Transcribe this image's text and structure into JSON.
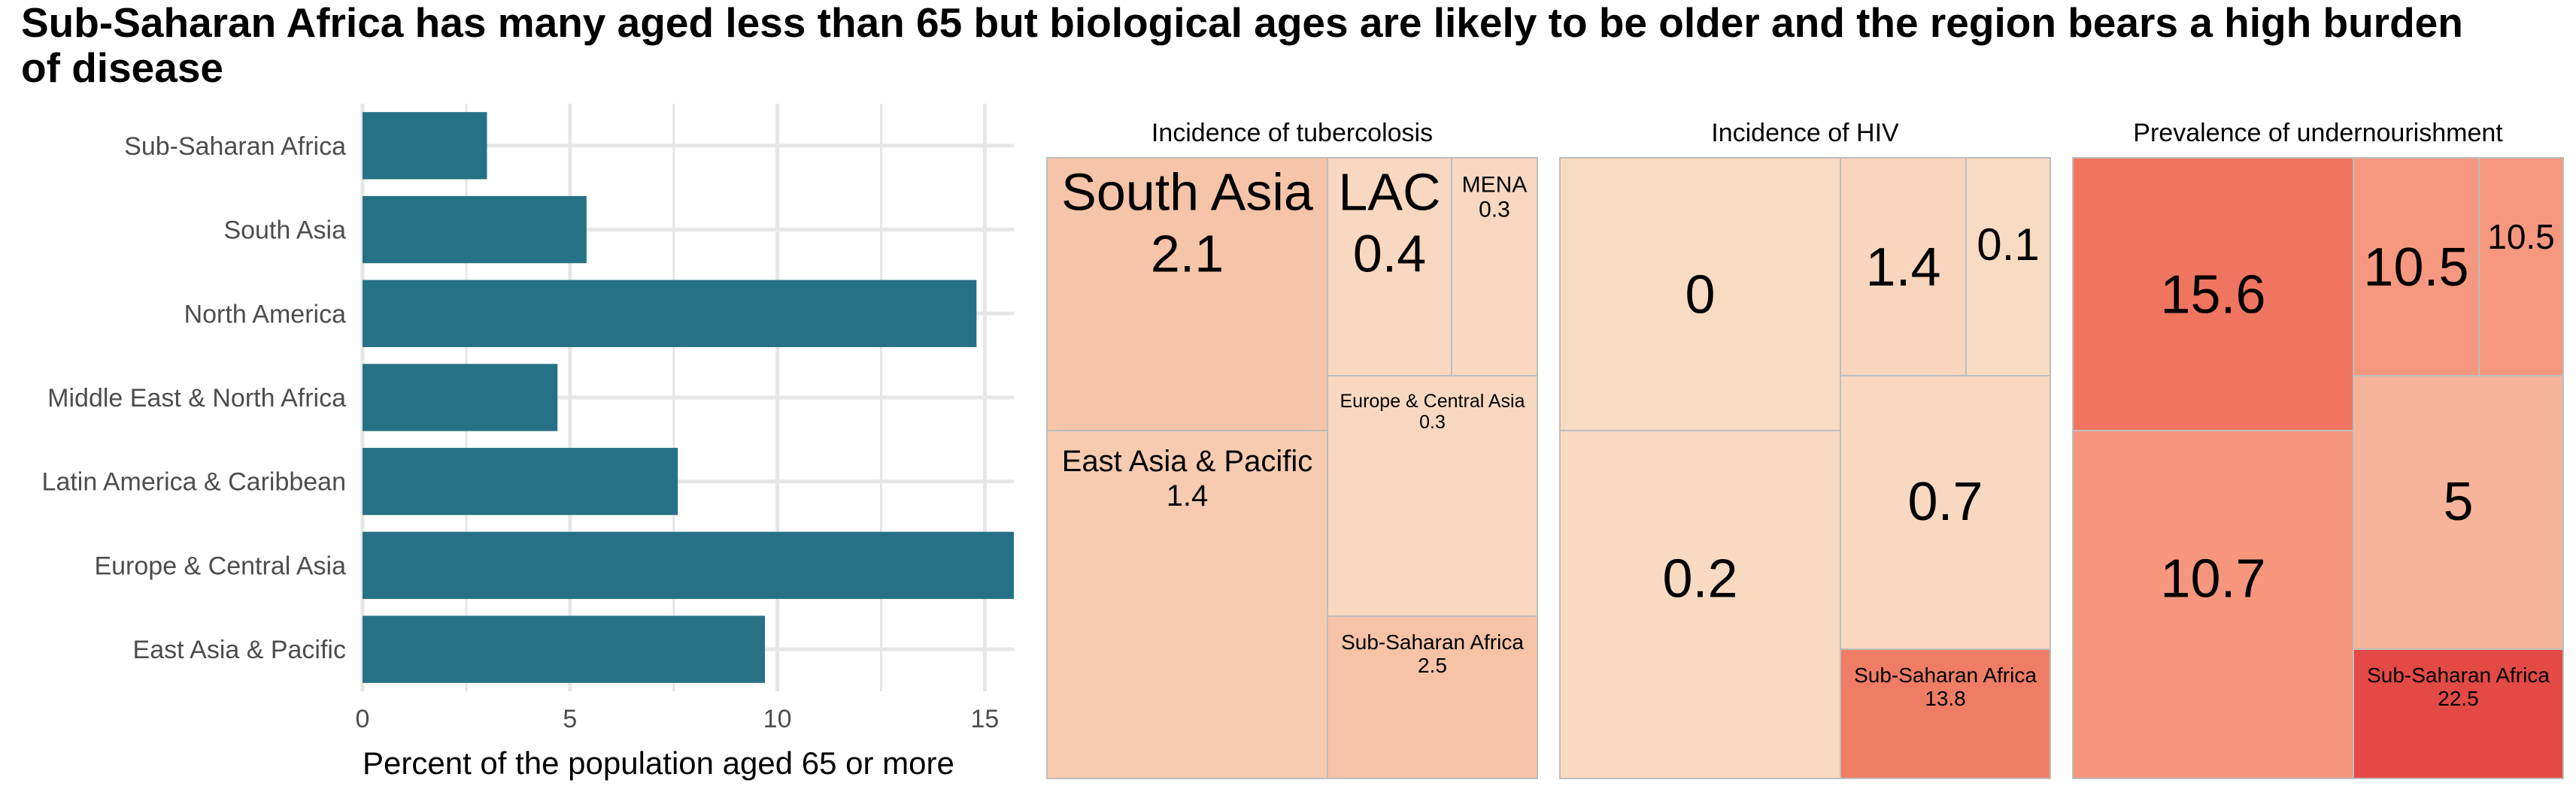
{
  "title": "Sub-Saharan Africa has many aged less than 65 but biological ages are likely to be older and the region bears a high burden of disease",
  "colors": {
    "bar": "#267185",
    "grid": "#e6e6e6",
    "tile_border": "#bdbdbd",
    "axis_text": "#4d4d4d"
  },
  "chart_data": [
    {
      "type": "bar",
      "orientation": "horizontal",
      "categories": [
        "Sub-Saharan Africa",
        "South Asia",
        "North America",
        "Middle East & North Africa",
        "Latin America & Caribbean",
        "Europe & Central Asia",
        "East Asia & Pacific"
      ],
      "values": [
        3.0,
        5.4,
        14.8,
        4.7,
        7.6,
        15.7,
        9.7
      ],
      "xlabel": "Percent of the population aged 65 or more",
      "xlim": [
        0,
        15.7
      ],
      "xticks": [
        0,
        5,
        10,
        15
      ],
      "grid": true
    },
    {
      "type": "treemap",
      "title": "Incidence of tubercolosis",
      "tiles": [
        {
          "label": "South Asia",
          "value_label": "2.1",
          "fill": "#f6c4a8"
        },
        {
          "label": "LAC",
          "value_label": "0.4",
          "fill": "#f8d8c0"
        },
        {
          "label": "MENA",
          "value_label": "0.3",
          "fill": "#f8d8c0"
        },
        {
          "label": "East Asia & Pacific",
          "value_label": "1.4",
          "fill": "#f7cbb0"
        },
        {
          "label": "Europe & Central Asia",
          "value_label": "0.3",
          "fill": "#f8d8c0"
        },
        {
          "label": "Sub-Saharan Africa",
          "value_label": "2.5",
          "fill": "#f6c3a6"
        }
      ]
    },
    {
      "type": "treemap",
      "title": "Incidence of HIV",
      "tiles": [
        {
          "label": "",
          "value_label": "0",
          "fill": "#f8dbc3"
        },
        {
          "label": "",
          "value_label": "1.4",
          "fill": "#f8d5bd"
        },
        {
          "label": "",
          "value_label": "0.1",
          "fill": "#f8dbc3"
        },
        {
          "label": "",
          "value_label": "0.2",
          "fill": "#f8dac2"
        },
        {
          "label": "",
          "value_label": "0.7",
          "fill": "#f8d8c0"
        },
        {
          "label": "Sub-Saharan Africa",
          "value_label": "13.8",
          "fill": "#ef7d65"
        }
      ]
    },
    {
      "type": "treemap",
      "title": "Prevalence of undernourishment",
      "tiles": [
        {
          "label": "",
          "value_label": "15.6",
          "fill": "#ef7560"
        },
        {
          "label": "",
          "value_label": "10.5",
          "fill": "#f5987f"
        },
        {
          "label": "",
          "value_label": "10.5",
          "fill": "#f5987f"
        },
        {
          "label": "",
          "value_label": "10.7",
          "fill": "#f5967d"
        },
        {
          "label": "",
          "value_label": "5",
          "fill": "#f6b49b"
        },
        {
          "label": "Sub-Saharan Africa",
          "value_label": "22.5",
          "fill": "#e34a45"
        }
      ]
    }
  ]
}
